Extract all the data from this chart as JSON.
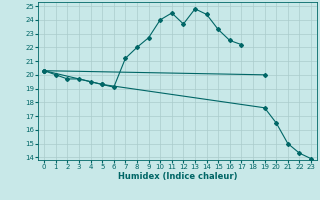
{
  "title": "",
  "xlabel": "Humidex (Indice chaleur)",
  "bg_color": "#c8e8e8",
  "line_color": "#006666",
  "grid_color": "#b0d0d0",
  "xlim": [
    -0.5,
    23.5
  ],
  "ylim": [
    13.8,
    25.3
  ],
  "xticks": [
    0,
    1,
    2,
    3,
    4,
    5,
    6,
    7,
    8,
    9,
    10,
    11,
    12,
    13,
    14,
    15,
    16,
    17,
    18,
    19,
    20,
    21,
    22,
    23
  ],
  "yticks": [
    14,
    15,
    16,
    17,
    18,
    19,
    20,
    21,
    22,
    23,
    24,
    25
  ],
  "curve1_x": [
    0,
    1,
    2,
    3,
    4,
    5,
    6,
    7,
    8,
    9,
    10,
    11,
    12,
    13,
    14,
    15,
    16,
    17
  ],
  "curve1_y": [
    20.3,
    20.0,
    19.7,
    19.7,
    19.5,
    19.3,
    19.1,
    21.2,
    22.0,
    22.7,
    24.0,
    24.5,
    23.7,
    24.8,
    24.4,
    23.3,
    22.5,
    22.2
  ],
  "curve2_x": [
    0,
    19
  ],
  "curve2_y": [
    20.3,
    20.0
  ],
  "curve3_x": [
    0,
    5,
    19,
    20,
    21,
    22,
    23
  ],
  "curve3_y": [
    20.3,
    19.3,
    17.6,
    16.5,
    15.0,
    14.3,
    13.9
  ]
}
